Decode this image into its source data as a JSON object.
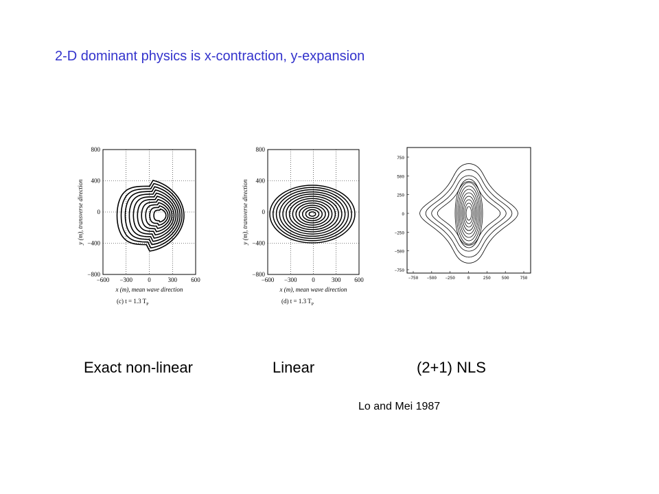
{
  "title": "2-D dominant physics is x-contraction, y-expansion",
  "plots": [
    {
      "xticks": [
        "−600",
        "−300",
        "0",
        "300",
        "600"
      ],
      "yticks": [
        "800",
        "400",
        "0",
        "−400",
        "−800"
      ],
      "xlabel": "x (m), mean wave direction",
      "ylabel": "y (m), transverse direction",
      "caption": "(c) t = 1.3 T",
      "caption_sub": "P"
    },
    {
      "xticks": [
        "−600",
        "−300",
        "0",
        "300",
        "600"
      ],
      "yticks": [
        "800",
        "400",
        "0",
        "−400",
        "−800"
      ],
      "xlabel": "x (m), mean wave direction",
      "ylabel": "y (m), transverse direction",
      "caption": "(d) t = 1.3 T",
      "caption_sub": "P"
    },
    {
      "xticks": [
        "−750",
        "−500",
        "−250",
        "0",
        "250",
        "500",
        "750"
      ],
      "yticks": [
        "750",
        "500",
        "250",
        "0",
        "−250",
        "−500",
        "−750"
      ]
    }
  ],
  "labels": [
    "Exact non-linear",
    "Linear",
    "(2+1) NLS"
  ],
  "citation": "Lo and Mei 1987"
}
